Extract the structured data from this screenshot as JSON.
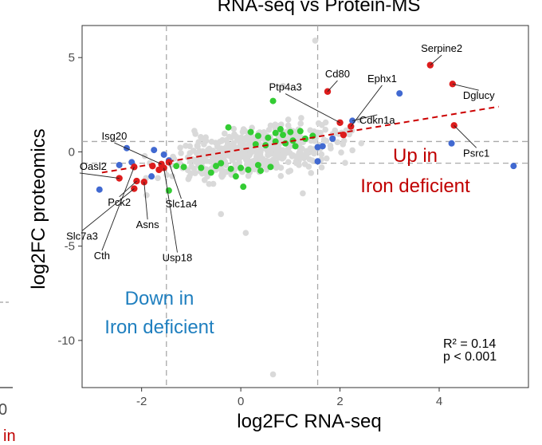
{
  "chart_data": {
    "type": "scatter",
    "title": "RNA-seq vs Protein-MS",
    "xlabel": "log2FC RNA-seq",
    "ylabel": "log2FC proteomics",
    "xlim": [
      -3.2,
      5.8
    ],
    "ylim": [
      -12.5,
      6.7
    ],
    "x_ticks": [
      "-2",
      "0",
      "2",
      "4"
    ],
    "y_ticks": [
      "5",
      "0",
      "-5",
      "-10"
    ],
    "thresholds": {
      "x": [
        -1.5,
        1.55
      ],
      "y": [
        0.55,
        -0.6
      ]
    },
    "colors": {
      "up": "#dd1c1c",
      "down_blue": "#4169d1",
      "mid_green": "#33cc33",
      "background": "#d9d9d9",
      "trend": "#cc0000"
    },
    "trend_line": {
      "x": [
        -2.8,
        5.2
      ],
      "y": [
        -1.1,
        2.4
      ]
    },
    "red_points": [
      {
        "x": 3.82,
        "y": 4.6
      },
      {
        "x": 4.27,
        "y": 3.6
      },
      {
        "x": 4.3,
        "y": 1.4
      },
      {
        "x": 1.75,
        "y": 3.2
      },
      {
        "x": 2.0,
        "y": 1.55
      },
      {
        "x": 2.22,
        "y": 1.35
      },
      {
        "x": 2.07,
        "y": 0.9
      },
      {
        "x": -2.15,
        "y": -0.8
      },
      {
        "x": -2.45,
        "y": -1.4
      },
      {
        "x": -2.1,
        "y": -1.55
      },
      {
        "x": -1.95,
        "y": -1.6
      },
      {
        "x": -2.15,
        "y": -1.95
      },
      {
        "x": -1.65,
        "y": -0.95
      },
      {
        "x": -1.55,
        "y": -0.85
      },
      {
        "x": -1.78,
        "y": -0.75
      },
      {
        "x": -1.45,
        "y": -0.55
      },
      {
        "x": -1.6,
        "y": -0.65
      }
    ],
    "blue_points": [
      {
        "x": 3.2,
        "y": 3.1
      },
      {
        "x": 2.25,
        "y": 1.65
      },
      {
        "x": 4.25,
        "y": 0.45
      },
      {
        "x": 5.5,
        "y": -0.75
      },
      {
        "x": 1.65,
        "y": 0.3
      },
      {
        "x": 1.85,
        "y": 0.7
      },
      {
        "x": 1.55,
        "y": 0.25
      },
      {
        "x": 1.55,
        "y": -0.5
      },
      {
        "x": -2.2,
        "y": -0.55
      },
      {
        "x": -2.45,
        "y": -0.7
      },
      {
        "x": -2.85,
        "y": -2.0
      },
      {
        "x": -1.8,
        "y": -1.3
      },
      {
        "x": -1.75,
        "y": 0.1
      },
      {
        "x": -1.55,
        "y": -0.15
      },
      {
        "x": -1.45,
        "y": -0.45
      },
      {
        "x": -2.3,
        "y": 0.2
      }
    ],
    "green_points": [
      {
        "x": 0.65,
        "y": 2.7
      },
      {
        "x": -0.25,
        "y": 1.3
      },
      {
        "x": 0.2,
        "y": 1.05
      },
      {
        "x": 0.35,
        "y": 0.85
      },
      {
        "x": 0.55,
        "y": 0.75
      },
      {
        "x": 0.7,
        "y": 1.0
      },
      {
        "x": 0.85,
        "y": 0.9
      },
      {
        "x": 1.0,
        "y": 1.05
      },
      {
        "x": 1.2,
        "y": 1.1
      },
      {
        "x": 1.3,
        "y": 0.7
      },
      {
        "x": 1.45,
        "y": 0.85
      },
      {
        "x": 0.3,
        "y": 0.4
      },
      {
        "x": 0.5,
        "y": 0.35
      },
      {
        "x": 0.9,
        "y": 0.45
      },
      {
        "x": 1.1,
        "y": 0.3
      },
      {
        "x": -1.15,
        "y": -0.8
      },
      {
        "x": -0.8,
        "y": -0.85
      },
      {
        "x": -0.5,
        "y": -0.75
      },
      {
        "x": -0.2,
        "y": -0.9
      },
      {
        "x": 0.0,
        "y": -0.85
      },
      {
        "x": 0.15,
        "y": -0.95
      },
      {
        "x": 0.4,
        "y": -1.0
      },
      {
        "x": 0.6,
        "y": -0.8
      },
      {
        "x": -0.1,
        "y": -1.3
      },
      {
        "x": 0.05,
        "y": -1.85
      },
      {
        "x": -1.3,
        "y": -0.75
      },
      {
        "x": 0.35,
        "y": -0.7
      },
      {
        "x": -0.6,
        "y": -1.1
      },
      {
        "x": 0.8,
        "y": 1.2
      },
      {
        "x": 1.05,
        "y": 0.6
      },
      {
        "x": -1.45,
        "y": -2.05
      },
      {
        "x": -0.4,
        "y": -0.6
      },
      {
        "x": 0.7,
        "y": 0.55
      }
    ],
    "labels": [
      {
        "text": "Serpine2",
        "x": 4.05,
        "y": 5.3,
        "anchor": "middle",
        "px": 3.82,
        "py": 4.6
      },
      {
        "text": "Dglucy",
        "x": 4.8,
        "y": 2.8,
        "anchor": "middle",
        "px": 4.27,
        "py": 3.6
      },
      {
        "text": "Cd80",
        "x": 1.95,
        "y": 3.95,
        "anchor": "middle",
        "px": 1.75,
        "py": 3.2
      },
      {
        "text": "Ephx1",
        "x": 2.85,
        "y": 3.7,
        "anchor": "middle",
        "px": 2.22,
        "py": 1.35
      },
      {
        "text": "Ptp4a3",
        "x": 0.9,
        "y": 3.25,
        "anchor": "middle",
        "px": 2.0,
        "py": 1.55
      },
      {
        "text": "Cdkn1a",
        "x": 2.75,
        "y": 1.5,
        "anchor": "middle",
        "px": 2.25,
        "py": 1.65
      },
      {
        "text": "Psrc1",
        "x": 4.75,
        "y": -0.25,
        "anchor": "middle",
        "px": 4.3,
        "py": 1.4
      },
      {
        "text": "Isg20",
        "x": -2.55,
        "y": 0.65,
        "anchor": "middle",
        "px": -1.6,
        "py": -0.65
      },
      {
        "text": "Oasl2",
        "x": -3.25,
        "y": -0.95,
        "anchor": "start",
        "px": -2.45,
        "py": -1.4
      },
      {
        "text": "Pck2",
        "x": -2.45,
        "y": -2.85,
        "anchor": "middle",
        "px": -2.1,
        "py": -1.55
      },
      {
        "text": "Slc1a4",
        "x": -1.2,
        "y": -2.95,
        "anchor": "middle",
        "px": -1.45,
        "py": -0.55
      },
      {
        "text": "Asns",
        "x": -1.88,
        "y": -4.05,
        "anchor": "middle",
        "px": -1.95,
        "py": -1.6
      },
      {
        "text": "Slc7a3",
        "x": -3.2,
        "y": -4.65,
        "anchor": "middle",
        "px": -2.15,
        "py": -1.95
      },
      {
        "text": "Cth",
        "x": -2.8,
        "y": -5.7,
        "anchor": "middle",
        "px": -2.15,
        "py": -0.8
      },
      {
        "text": "Usp18",
        "x": -1.28,
        "y": -5.8,
        "anchor": "middle",
        "px": -1.55,
        "py": -0.85
      }
    ],
    "annotations": {
      "up": [
        "Up in",
        "Iron deficient"
      ],
      "down": [
        "Down in",
        "Iron deficient"
      ]
    },
    "stats": {
      "r2": "R² = 0.14",
      "p": "p < 0.001"
    }
  }
}
